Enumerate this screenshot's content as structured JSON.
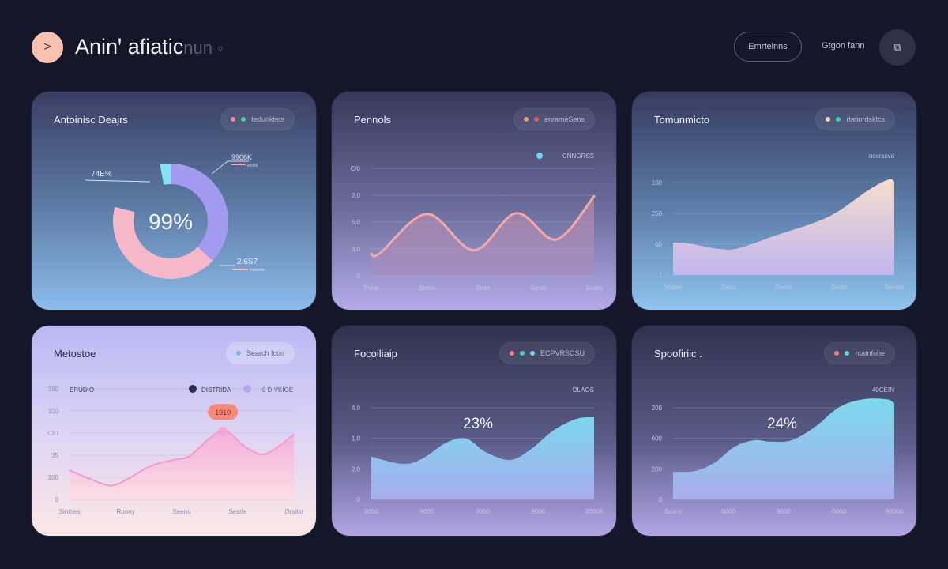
{
  "header": {
    "back_icon": "chevron-right-icon",
    "back_glyph": ">",
    "title": "Aninꞌ afiatic",
    "title_faded": "nun ◦",
    "outline_button": "Emrtelnns",
    "text_button": "Gtgon fann",
    "icon_button": "copy-icon",
    "icon_glyph": "⧉"
  },
  "colors": {
    "background": "#14172a",
    "accent_peach": "#f6c1b0",
    "tooltip": "#f58a7a"
  },
  "cards": [
    {
      "title": "Antoinisc Deajrs",
      "legend": {
        "dots": [
          "#f28a8a",
          "#4fd1a5"
        ],
        "label": "tedunktets"
      },
      "donut": {
        "center_label": "99%",
        "segments": [
          {
            "name": "cyan",
            "value": 18,
            "color": "#86e3f5"
          },
          {
            "name": "purple",
            "value": 40,
            "color": "#a29bf0"
          },
          {
            "name": "pink",
            "value": 42,
            "color": "#f6b8c8"
          }
        ],
        "annotations": [
          {
            "value": "74E%",
            "sub": ""
          },
          {
            "value": "9906K",
            "sub": "ktebts"
          },
          {
            "value": "2.6S7",
            "sub": "tcsnsets"
          }
        ]
      }
    },
    {
      "title": "Pennols",
      "legend": {
        "dots": [
          "#f59a7e",
          "#e06060"
        ],
        "label": "enrameSens"
      },
      "chart_data": {
        "type": "line",
        "series_label": "CNNGRSS",
        "series_dot": "#6fd6f2",
        "ylim": [
          0,
          4
        ],
        "yticks": [
          {
            "v": 0,
            "label": "0"
          },
          {
            "v": 1,
            "label": "3.0"
          },
          {
            "v": 2,
            "label": "5.0"
          },
          {
            "v": 3,
            "label": "2.0"
          },
          {
            "v": 4,
            "label": "C/0"
          }
        ],
        "xlabels": [
          "Pone",
          "Sntse",
          "Stete",
          "Gecto",
          "Sonto"
        ],
        "points": [
          [
            0,
            0.82
          ],
          [
            0.4,
            0.85
          ],
          [
            2.5,
            2.3
          ],
          [
            4.6,
            0.95
          ],
          [
            6.5,
            2.33
          ],
          [
            8.3,
            1.35
          ],
          [
            10,
            2.96
          ]
        ],
        "line_color": "#f4a9a8",
        "fill_top": "#c98fa8",
        "fill_bottom": "#a48cbf"
      }
    },
    {
      "title": "Tomunmicto",
      "legend": {
        "dots": [
          "#fbd9c8",
          "#3fd3a0"
        ],
        "label": "rtatinrdsktcs"
      },
      "chart_data": {
        "type": "area",
        "series_label": "nocrssvd",
        "ylim": [
          0,
          3
        ],
        "yticks": [
          {
            "v": 0,
            "label": "7"
          },
          {
            "v": 1,
            "label": "60"
          },
          {
            "v": 2,
            "label": "250"
          },
          {
            "v": 3,
            "label": "100"
          }
        ],
        "xlabels": [
          "Vtobe",
          "Zwcc",
          "Scoro",
          "Socto",
          "Seonte"
        ],
        "points": [
          [
            0,
            1.05
          ],
          [
            0.64,
            1.03
          ],
          [
            2.07,
            0.85
          ],
          [
            2.96,
            0.87
          ],
          [
            4.75,
            1.31
          ],
          [
            6.36,
            1.69
          ],
          [
            7.43,
            2.05
          ],
          [
            8.86,
            2.77
          ],
          [
            9.75,
            3.1
          ],
          [
            10,
            3.03
          ]
        ],
        "fill_top": "#fde3cf",
        "fill_bottom": "#c5b6f0"
      }
    },
    {
      "title": "Metostoe",
      "legend": {
        "dots": [
          "#7ab6e8"
        ],
        "label": "Search Icon"
      },
      "chart_data": {
        "type": "area",
        "header_label": "ERUDIO",
        "series": [
          {
            "name": "DISTRIDA",
            "color": "#2c2f4c"
          },
          {
            "name": "0 DIVKIGE",
            "color": "#b1a8ee"
          }
        ],
        "tooltip": "1910",
        "ylim": [
          0,
          5
        ],
        "yticks": [
          {
            "v": 0,
            "label": "0"
          },
          {
            "v": 1,
            "label": "100"
          },
          {
            "v": 2,
            "label": "35"
          },
          {
            "v": 3,
            "label": "CID"
          },
          {
            "v": 4,
            "label": "100"
          },
          {
            "v": 5,
            "label": "190"
          }
        ],
        "xlabels": [
          "Sintnes",
          "Roony",
          "Seeno",
          "Sesrte",
          "Orsitio"
        ],
        "points": [
          [
            0,
            1.32
          ],
          [
            1.48,
            0.71
          ],
          [
            2.18,
            0.71
          ],
          [
            3.59,
            1.5
          ],
          [
            4.65,
            1.79
          ],
          [
            5.35,
            1.96
          ],
          [
            6.23,
            2.75
          ],
          [
            6.94,
            3.1
          ],
          [
            7.82,
            2.39
          ],
          [
            8.52,
            2.04
          ],
          [
            9.05,
            2.21
          ],
          [
            10,
            2.93
          ]
        ],
        "peak_index": 7,
        "line_color": "#f29ccb",
        "fill_top": "#f6addb",
        "fill_bottom": "#fbdde4"
      }
    },
    {
      "title": "Focoiliaip",
      "legend": {
        "dots": [
          "#f08080",
          "#47d0a2",
          "#6fd6f2"
        ],
        "label": "ECPVRSCSU"
      },
      "chart_data": {
        "type": "area",
        "series_label": "OLAOS",
        "big_label": "23%",
        "ylim": [
          0,
          3
        ],
        "yticks": [
          {
            "v": 0,
            "label": "0"
          },
          {
            "v": 1,
            "label": "2.0"
          },
          {
            "v": 2,
            "label": "1.0"
          },
          {
            "v": 3,
            "label": "4.0"
          }
        ],
        "xlabels": [
          "2000",
          "9000",
          "3000",
          "9000",
          "20008"
        ],
        "points": [
          [
            0,
            1.4
          ],
          [
            1.42,
            1.16
          ],
          [
            2.3,
            1.34
          ],
          [
            3.37,
            1.86
          ],
          [
            4.26,
            1.99
          ],
          [
            5.14,
            1.55
          ],
          [
            6.21,
            1.29
          ],
          [
            7.09,
            1.6
          ],
          [
            8.16,
            2.25
          ],
          [
            9.22,
            2.64
          ],
          [
            10,
            2.69
          ]
        ],
        "fill_top": "#80dcf5",
        "fill_bottom": "#a8b0ee"
      }
    },
    {
      "title": "Spoofiriic .",
      "legend": {
        "dots": [
          "#f08080",
          "#55dbd0"
        ],
        "label": "rcatnfohe"
      },
      "chart_data": {
        "type": "area",
        "series_label": "40CEIN",
        "big_label": "24%",
        "ylim": [
          0,
          3
        ],
        "yticks": [
          {
            "v": 0,
            "label": "0"
          },
          {
            "v": 1,
            "label": "200"
          },
          {
            "v": 2,
            "label": "600"
          },
          {
            "v": 3,
            "label": "200"
          }
        ],
        "xlabels": [
          "Scons",
          "0000",
          "9000",
          "0000",
          "90000"
        ],
        "points": [
          [
            0,
            0.9
          ],
          [
            1,
            0.93
          ],
          [
            1.89,
            1.21
          ],
          [
            2.79,
            1.73
          ],
          [
            3.68,
            1.94
          ],
          [
            4.39,
            1.89
          ],
          [
            5.36,
            1.94
          ],
          [
            6.43,
            2.38
          ],
          [
            7.5,
            3.02
          ],
          [
            8.6,
            3.28
          ],
          [
            9.64,
            3.28
          ],
          [
            10,
            3.15
          ]
        ],
        "fill_top": "#7fe0f4",
        "fill_bottom": "#abb0ee"
      }
    }
  ]
}
